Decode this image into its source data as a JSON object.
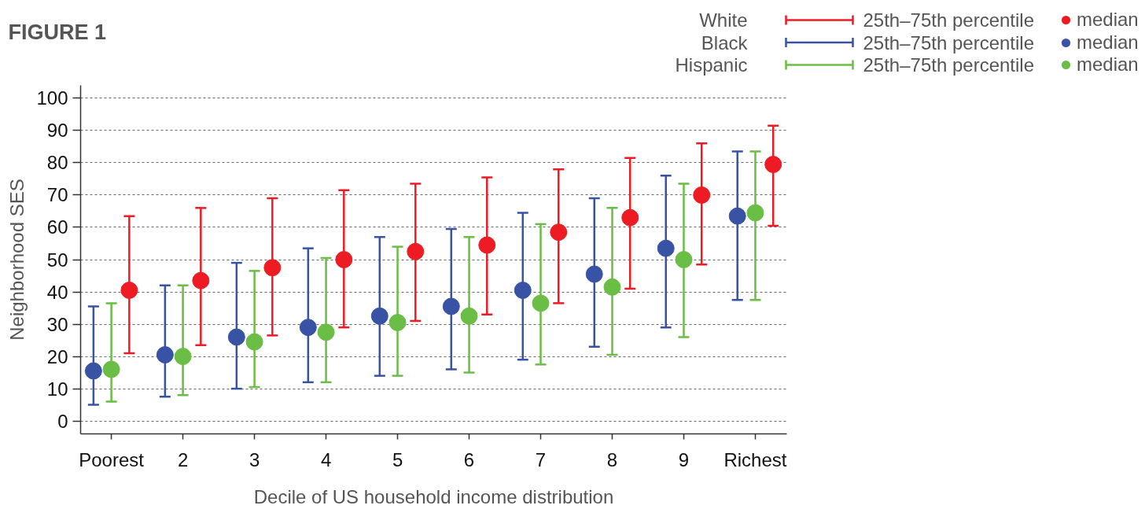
{
  "chart_data": {
    "type": "scatter",
    "title": "FIGURE 1",
    "xlabel": "Decile of US household income distribution",
    "ylabel": "Neighborhood SES",
    "categories": [
      "Poorest",
      "2",
      "3",
      "4",
      "5",
      "6",
      "7",
      "8",
      "9",
      "Richest"
    ],
    "series": [
      {
        "name": "White",
        "color": "#ed1c24",
        "values": [
          40.5,
          43.5,
          47.5,
          50,
          52.5,
          54.5,
          58.5,
          63,
          70,
          79.5
        ],
        "errors": [
          [
            21,
            63.5
          ],
          [
            23.5,
            66
          ],
          [
            26.5,
            69
          ],
          [
            29,
            71.5
          ],
          [
            31,
            73.5
          ],
          [
            33,
            75.5
          ],
          [
            36.5,
            78
          ],
          [
            41,
            81.5
          ],
          [
            48.5,
            86
          ],
          [
            60.5,
            91.5
          ]
        ]
      },
      {
        "name": "Black",
        "color": "#3953a4",
        "values": [
          15.5,
          20.5,
          26,
          29,
          32.5,
          35.5,
          40.5,
          45.5,
          53.5,
          63.5
        ],
        "errors": [
          [
            5,
            35.5
          ],
          [
            7.5,
            42
          ],
          [
            10,
            49
          ],
          [
            12,
            53.5
          ],
          [
            14,
            57
          ],
          [
            16,
            59.5
          ],
          [
            19,
            64.5
          ],
          [
            23,
            69
          ],
          [
            29,
            76
          ],
          [
            37.5,
            83.5
          ]
        ]
      },
      {
        "name": "Hispanic",
        "color": "#6abd45",
        "values": [
          16,
          20,
          24.5,
          27.5,
          30.5,
          32.5,
          36.5,
          41.5,
          50,
          64.5
        ],
        "errors": [
          [
            6,
            36.5
          ],
          [
            8,
            42
          ],
          [
            10.5,
            46.5
          ],
          [
            12,
            50.5
          ],
          [
            14,
            54
          ],
          [
            15,
            57
          ],
          [
            17.5,
            61
          ],
          [
            20.5,
            66
          ],
          [
            26,
            73.5
          ],
          [
            37.5,
            83.5
          ]
        ]
      }
    ],
    "ylim": [
      -4,
      104
    ],
    "yticks": [
      0,
      10,
      20,
      30,
      40,
      50,
      60,
      70,
      80,
      90,
      100
    ],
    "grid": "y",
    "legend": "top right",
    "marker": "circle",
    "annotations": [
      "25th–75th percentile",
      "median"
    ]
  }
}
